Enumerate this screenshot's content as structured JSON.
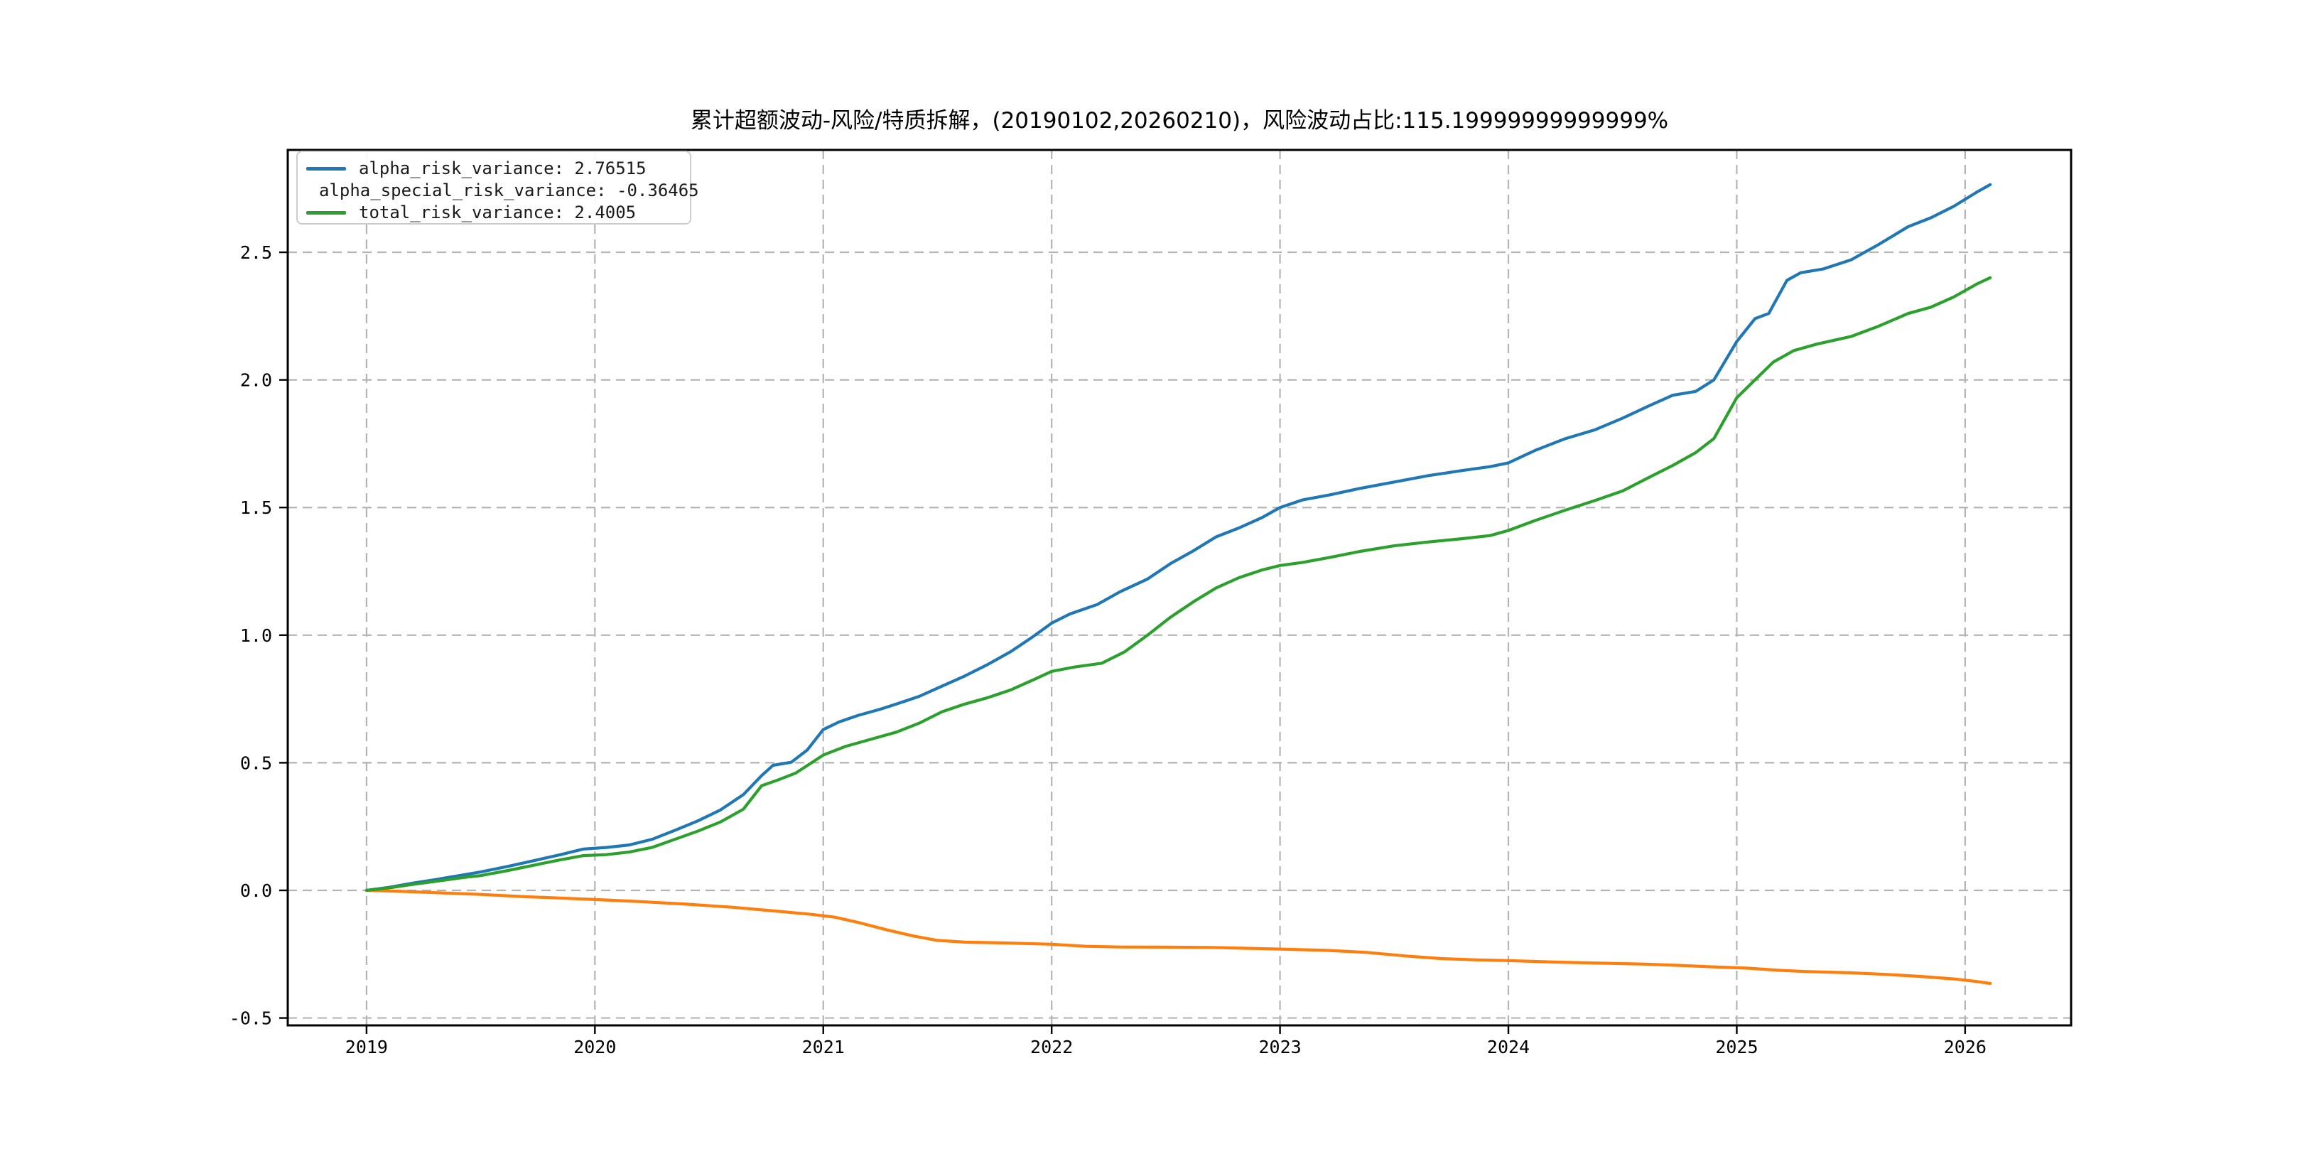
{
  "figure": {
    "title": "累计超额波动-风险/特质拆解，(20190102,20260210)，风险波动占比:115.19999999999999%",
    "background": "#ffffff"
  },
  "chart_data": {
    "type": "line",
    "title": "累计超额波动-风险/特质拆解，(20190102,20260210)，风险波动占比:115.19999999999999%",
    "xlabel": "",
    "ylabel": "",
    "x_unit": "year",
    "date_range": "20190102-20260210",
    "risk_ratio_percent": "115.19999999999999%",
    "xlim": [
      2018.655,
      2026.464
    ],
    "ylim": [
      -0.529,
      2.901
    ],
    "x_ticks": [
      2019,
      2020,
      2021,
      2022,
      2023,
      2024,
      2025,
      2026
    ],
    "x_tick_labels": [
      "2019",
      "2020",
      "2021",
      "2022",
      "2023",
      "2024",
      "2025",
      "2026"
    ],
    "y_ticks": [
      2.5,
      2.0,
      1.5,
      1.0,
      0.5,
      0.0,
      -0.5
    ],
    "y_tick_labels": [
      "2.5",
      "2.0",
      "1.5",
      "1.0",
      "0.5",
      "0.0",
      "-0.5"
    ],
    "grid": "dashed",
    "grid_color": "#b4b4b4",
    "spine_color": "#000000",
    "legend_position": "upper-left",
    "series": [
      {
        "name": "alpha_risk_variance",
        "legend_label": "alpha_risk_variance: 2.76515",
        "final_value": 2.76515,
        "color": "#1f77b4",
        "points": [
          [
            2019.0,
            0.0
          ],
          [
            2019.1,
            0.012
          ],
          [
            2019.2,
            0.028
          ],
          [
            2019.3,
            0.042
          ],
          [
            2019.42,
            0.06
          ],
          [
            2019.5,
            0.072
          ],
          [
            2019.62,
            0.094
          ],
          [
            2019.75,
            0.12
          ],
          [
            2019.85,
            0.14
          ],
          [
            2019.95,
            0.162
          ],
          [
            2020.05,
            0.168
          ],
          [
            2020.15,
            0.178
          ],
          [
            2020.25,
            0.2
          ],
          [
            2020.35,
            0.235
          ],
          [
            2020.45,
            0.272
          ],
          [
            2020.55,
            0.315
          ],
          [
            2020.65,
            0.375
          ],
          [
            2020.73,
            0.45
          ],
          [
            2020.78,
            0.49
          ],
          [
            2020.86,
            0.502
          ],
          [
            2020.93,
            0.55
          ],
          [
            2021.0,
            0.63
          ],
          [
            2021.07,
            0.66
          ],
          [
            2021.15,
            0.685
          ],
          [
            2021.25,
            0.71
          ],
          [
            2021.32,
            0.73
          ],
          [
            2021.42,
            0.76
          ],
          [
            2021.52,
            0.8
          ],
          [
            2021.62,
            0.84
          ],
          [
            2021.72,
            0.885
          ],
          [
            2021.82,
            0.935
          ],
          [
            2021.92,
            0.995
          ],
          [
            2022.0,
            1.047
          ],
          [
            2022.08,
            1.083
          ],
          [
            2022.2,
            1.12
          ],
          [
            2022.3,
            1.17
          ],
          [
            2022.42,
            1.22
          ],
          [
            2022.52,
            1.28
          ],
          [
            2022.62,
            1.33
          ],
          [
            2022.72,
            1.385
          ],
          [
            2022.82,
            1.42
          ],
          [
            2022.92,
            1.46
          ],
          [
            2023.0,
            1.5
          ],
          [
            2023.1,
            1.53
          ],
          [
            2023.22,
            1.55
          ],
          [
            2023.35,
            1.575
          ],
          [
            2023.5,
            1.6
          ],
          [
            2023.65,
            1.625
          ],
          [
            2023.8,
            1.645
          ],
          [
            2023.92,
            1.66
          ],
          [
            2024.0,
            1.675
          ],
          [
            2024.12,
            1.725
          ],
          [
            2024.25,
            1.77
          ],
          [
            2024.38,
            1.805
          ],
          [
            2024.5,
            1.85
          ],
          [
            2024.62,
            1.9
          ],
          [
            2024.72,
            1.94
          ],
          [
            2024.82,
            1.955
          ],
          [
            2024.9,
            2.0
          ],
          [
            2025.0,
            2.15
          ],
          [
            2025.08,
            2.24
          ],
          [
            2025.14,
            2.26
          ],
          [
            2025.22,
            2.39
          ],
          [
            2025.28,
            2.42
          ],
          [
            2025.38,
            2.435
          ],
          [
            2025.5,
            2.47
          ],
          [
            2025.62,
            2.53
          ],
          [
            2025.75,
            2.6
          ],
          [
            2025.85,
            2.635
          ],
          [
            2025.95,
            2.68
          ],
          [
            2026.05,
            2.735
          ],
          [
            2026.11,
            2.76515
          ]
        ]
      },
      {
        "name": "alpha_special_risk_variance",
        "legend_label": "alpha_special_risk_variance: -0.36465",
        "final_value": -0.36465,
        "color": "#ff7f0e",
        "points": [
          [
            2019.0,
            0.0
          ],
          [
            2019.15,
            -0.004
          ],
          [
            2019.3,
            -0.009
          ],
          [
            2019.5,
            -0.016
          ],
          [
            2019.7,
            -0.025
          ],
          [
            2019.85,
            -0.03
          ],
          [
            2020.0,
            -0.036
          ],
          [
            2020.2,
            -0.044
          ],
          [
            2020.4,
            -0.054
          ],
          [
            2020.6,
            -0.066
          ],
          [
            2020.8,
            -0.082
          ],
          [
            2020.95,
            -0.094
          ],
          [
            2021.05,
            -0.105
          ],
          [
            2021.15,
            -0.125
          ],
          [
            2021.28,
            -0.155
          ],
          [
            2021.4,
            -0.18
          ],
          [
            2021.5,
            -0.196
          ],
          [
            2021.62,
            -0.203
          ],
          [
            2021.8,
            -0.206
          ],
          [
            2022.0,
            -0.211
          ],
          [
            2022.15,
            -0.219
          ],
          [
            2022.3,
            -0.222
          ],
          [
            2022.5,
            -0.2225
          ],
          [
            2022.7,
            -0.2235
          ],
          [
            2022.85,
            -0.227
          ],
          [
            2023.0,
            -0.23
          ],
          [
            2023.2,
            -0.235
          ],
          [
            2023.38,
            -0.243
          ],
          [
            2023.55,
            -0.257
          ],
          [
            2023.7,
            -0.267
          ],
          [
            2023.85,
            -0.272
          ],
          [
            2024.0,
            -0.275
          ],
          [
            2024.2,
            -0.281
          ],
          [
            2024.4,
            -0.285
          ],
          [
            2024.6,
            -0.289
          ],
          [
            2024.75,
            -0.294
          ],
          [
            2024.9,
            -0.3
          ],
          [
            2025.05,
            -0.305
          ],
          [
            2025.18,
            -0.313
          ],
          [
            2025.3,
            -0.318
          ],
          [
            2025.5,
            -0.323
          ],
          [
            2025.65,
            -0.329
          ],
          [
            2025.8,
            -0.337
          ],
          [
            2025.95,
            -0.347
          ],
          [
            2026.05,
            -0.357
          ],
          [
            2026.11,
            -0.36465
          ]
        ]
      },
      {
        "name": "total_risk_variance",
        "legend_label": "total_risk_variance: 2.4005",
        "final_value": 2.4005,
        "color": "#2ca02c",
        "points": [
          [
            2019.0,
            0.0
          ],
          [
            2019.1,
            0.01
          ],
          [
            2019.2,
            0.023
          ],
          [
            2019.3,
            0.035
          ],
          [
            2019.42,
            0.05
          ],
          [
            2019.5,
            0.058
          ],
          [
            2019.62,
            0.078
          ],
          [
            2019.75,
            0.102
          ],
          [
            2019.85,
            0.12
          ],
          [
            2019.95,
            0.136
          ],
          [
            2020.05,
            0.14
          ],
          [
            2020.15,
            0.15
          ],
          [
            2020.25,
            0.168
          ],
          [
            2020.35,
            0.2
          ],
          [
            2020.45,
            0.232
          ],
          [
            2020.55,
            0.268
          ],
          [
            2020.65,
            0.318
          ],
          [
            2020.73,
            0.41
          ],
          [
            2020.8,
            0.432
          ],
          [
            2020.88,
            0.46
          ],
          [
            2021.0,
            0.53
          ],
          [
            2021.1,
            0.565
          ],
          [
            2021.2,
            0.59
          ],
          [
            2021.32,
            0.62
          ],
          [
            2021.42,
            0.655
          ],
          [
            2021.52,
            0.7
          ],
          [
            2021.62,
            0.73
          ],
          [
            2021.72,
            0.755
          ],
          [
            2021.82,
            0.785
          ],
          [
            2021.92,
            0.825
          ],
          [
            2022.0,
            0.858
          ],
          [
            2022.1,
            0.875
          ],
          [
            2022.22,
            0.89
          ],
          [
            2022.32,
            0.935
          ],
          [
            2022.42,
            1.0
          ],
          [
            2022.52,
            1.07
          ],
          [
            2022.62,
            1.13
          ],
          [
            2022.72,
            1.185
          ],
          [
            2022.82,
            1.225
          ],
          [
            2022.92,
            1.255
          ],
          [
            2023.0,
            1.273
          ],
          [
            2023.1,
            1.285
          ],
          [
            2023.22,
            1.305
          ],
          [
            2023.35,
            1.328
          ],
          [
            2023.5,
            1.35
          ],
          [
            2023.65,
            1.365
          ],
          [
            2023.8,
            1.378
          ],
          [
            2023.92,
            1.39
          ],
          [
            2024.0,
            1.41
          ],
          [
            2024.12,
            1.45
          ],
          [
            2024.25,
            1.49
          ],
          [
            2024.38,
            1.528
          ],
          [
            2024.5,
            1.565
          ],
          [
            2024.62,
            1.62
          ],
          [
            2024.72,
            1.665
          ],
          [
            2024.82,
            1.715
          ],
          [
            2024.9,
            1.77
          ],
          [
            2025.0,
            1.93
          ],
          [
            2025.08,
            2.0
          ],
          [
            2025.16,
            2.07
          ],
          [
            2025.25,
            2.115
          ],
          [
            2025.35,
            2.14
          ],
          [
            2025.5,
            2.17
          ],
          [
            2025.62,
            2.21
          ],
          [
            2025.75,
            2.26
          ],
          [
            2025.85,
            2.285
          ],
          [
            2025.95,
            2.325
          ],
          [
            2026.05,
            2.375
          ],
          [
            2026.11,
            2.4005
          ]
        ]
      }
    ]
  }
}
